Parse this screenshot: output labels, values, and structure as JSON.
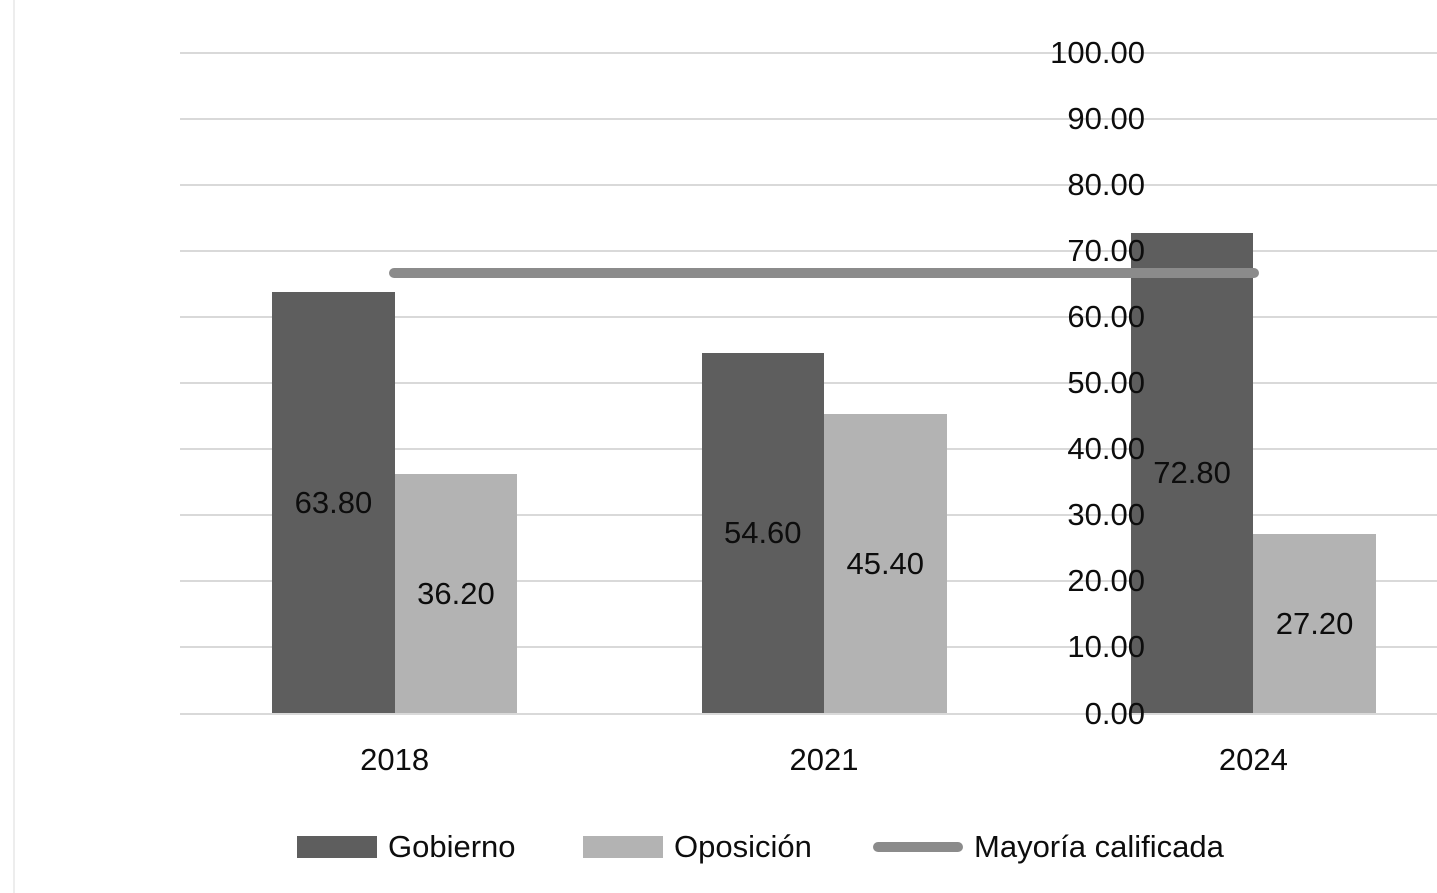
{
  "chart_data": {
    "type": "bar",
    "title": "",
    "xlabel": "",
    "ylabel": "",
    "categories": [
      "2018",
      "2021",
      "2024"
    ],
    "series": [
      {
        "name": "Gobierno",
        "type": "bar",
        "color": "#5e5e5e",
        "values": [
          63.8,
          54.6,
          72.8
        ],
        "labels": [
          "63.80",
          "54.60",
          "72.80"
        ]
      },
      {
        "name": "Oposición",
        "type": "bar",
        "color": "#b3b3b3",
        "values": [
          36.2,
          45.4,
          27.2
        ],
        "labels": [
          "36.20",
          "45.40",
          "27.20"
        ]
      },
      {
        "name": "Mayoría calificada",
        "type": "line",
        "color": "#8b8b8b",
        "values": [
          66.67,
          66.67,
          66.67
        ]
      }
    ],
    "ylim": [
      0,
      100
    ],
    "ytick_values": [
      0,
      10,
      20,
      30,
      40,
      50,
      60,
      70,
      80,
      90,
      100
    ],
    "ytick_labels": [
      "0.00",
      "10.00",
      "20.00",
      "30.00",
      "40.00",
      "50.00",
      "60.00",
      "70.00",
      "80.00",
      "90.00",
      "100.00"
    ],
    "grid": true,
    "legend_position": "bottom",
    "data_label_position": "center",
    "colors": {
      "gridline": "#d9d9d9",
      "axis_line": "#d9d9d9",
      "text": "#0d0d0d",
      "background": "#ffffff",
      "page_edge": "#ededed"
    }
  }
}
